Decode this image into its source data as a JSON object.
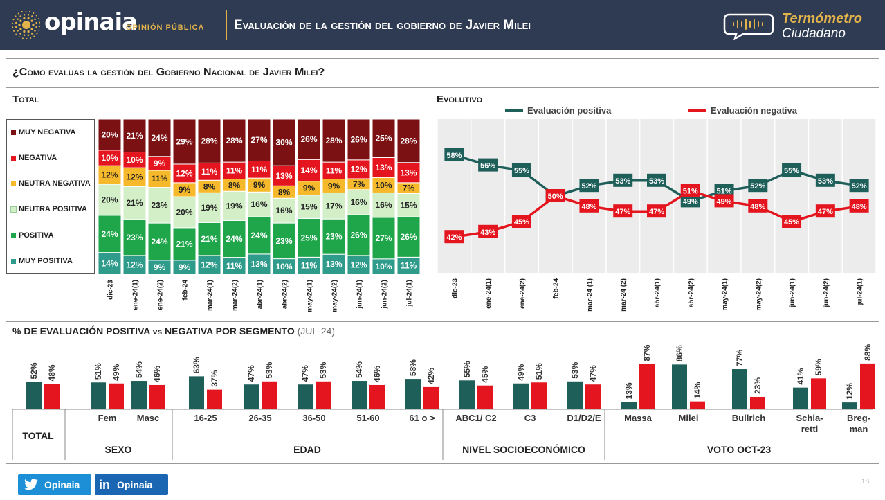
{
  "header": {
    "brand": "opinaia",
    "brand_sub": "OPINIÓN PÚBLICA",
    "title": "Evaluación de la gestión del gobierno de Javier Milei",
    "termo_line1": "Termómetro",
    "termo_line2": "Ciudadano"
  },
  "question": "¿Cómo evalúas la gestión del Gobierno Nacional de Javier Milei?",
  "sections": {
    "total": "Total",
    "evolutivo": "Evolutivo"
  },
  "colors": {
    "muy_negativa": "#7b1113",
    "negativa": "#e4151e",
    "neutra_negativa": "#f6b92b",
    "neutra_positiva": "#d2efc8",
    "positiva": "#1fa54a",
    "muy_positiva": "#2f9b8b",
    "positive_line": "#1e5f5a",
    "negative_line": "#e4151e",
    "header_bg": "#2e3b52",
    "accent": "#e2b34a"
  },
  "chart_data": [
    {
      "type": "bar",
      "stacked": true,
      "title": "Total",
      "categories": [
        "dic-23",
        "ene-24(1)",
        "ene-24(2)",
        "feb-24",
        "mar-24(1)",
        "mar-24(2)",
        "abr-24(1)",
        "abr-24(2)",
        "may-24(1)",
        "may-24(2)",
        "jun-24(1)",
        "jun-24(2)",
        "jul-24(1)"
      ],
      "series": [
        {
          "name": "MUY POSITIVA",
          "values": [
            14,
            12,
            9,
            9,
            12,
            11,
            13,
            10,
            11,
            13,
            12,
            10,
            11
          ]
        },
        {
          "name": "POSITIVA",
          "values": [
            24,
            23,
            24,
            21,
            21,
            24,
            24,
            23,
            25,
            23,
            26,
            27,
            26
          ]
        },
        {
          "name": "NEUTRA POSITIVA",
          "values": [
            20,
            21,
            23,
            20,
            19,
            19,
            16,
            16,
            15,
            17,
            16,
            16,
            15
          ]
        },
        {
          "name": "NEUTRA NEGATIVA",
          "values": [
            12,
            12,
            11,
            9,
            8,
            8,
            9,
            8,
            9,
            9,
            7,
            10,
            7
          ]
        },
        {
          "name": "NEGATIVA",
          "values": [
            10,
            10,
            9,
            12,
            11,
            11,
            11,
            13,
            14,
            11,
            12,
            13,
            13
          ]
        },
        {
          "name": "MUY NEGATIVA",
          "values": [
            20,
            21,
            24,
            29,
            28,
            28,
            27,
            30,
            26,
            28,
            26,
            25,
            28
          ]
        }
      ],
      "ylim": [
        0,
        100
      ]
    },
    {
      "type": "line",
      "title": "Evolutivo",
      "categories": [
        "dic-23",
        "ene-24(1)",
        "ene-24(2)",
        "feb-24",
        "mar-24 (1)",
        "mar-24 (2)",
        "abr-24(1)",
        "abr-24(2)",
        "may-24(1)",
        "may-24(2)",
        "jun-24(1)",
        "jun-24(2)",
        "jul-24(1)"
      ],
      "series": [
        {
          "name": "Evaluación positiva",
          "values": [
            58,
            56,
            55,
            50,
            52,
            53,
            53,
            49,
            51,
            52,
            55,
            53,
            52
          ]
        },
        {
          "name": "Evaluación negativa",
          "values": [
            42,
            43,
            45,
            50,
            48,
            47,
            47,
            51,
            49,
            48,
            45,
            47,
            48
          ]
        }
      ],
      "ylim": [
        35,
        65
      ],
      "grid": true,
      "legend": "top"
    },
    {
      "type": "bar",
      "title": "% DE EVALUACIÓN POSITIVA vs NEGATIVA POR SEGMENTO",
      "title_parts": {
        "a": "% DE EVALUACIÓN POSITIVA",
        "vs": "vs",
        "b": "NEGATIVA POR SEGMENTO",
        "period": "(JUL-24)"
      },
      "categories": [
        "",
        "Fem",
        "Masc",
        "16-25",
        "26-35",
        "36-50",
        "51-60",
        "61 o >",
        "ABC1/ C2",
        "C3",
        "D1/D2/E",
        "Massa",
        "Milei",
        "Bullrich",
        "Schia- retti",
        "Breg- man"
      ],
      "groups": [
        {
          "label": "TOTAL",
          "span": [
            0,
            0
          ]
        },
        {
          "label": "SEXO",
          "span": [
            1,
            2
          ]
        },
        {
          "label": "EDAD",
          "span": [
            3,
            7
          ]
        },
        {
          "label": "NIVEL SOCIOECONÓMICO",
          "span": [
            8,
            10
          ]
        },
        {
          "label": "VOTO OCT-23",
          "span": [
            11,
            15
          ]
        }
      ],
      "series": [
        {
          "name": "Evaluación positiva",
          "values": [
            52,
            51,
            54,
            63,
            47,
            47,
            54,
            58,
            55,
            49,
            53,
            13,
            86,
            77,
            41,
            12
          ]
        },
        {
          "name": "Evaluación negativa",
          "values": [
            48,
            49,
            46,
            37,
            53,
            53,
            46,
            42,
            45,
            51,
            47,
            87,
            14,
            23,
            59,
            88
          ]
        }
      ],
      "ylim": [
        0,
        100
      ]
    }
  ],
  "footer": {
    "twitter": "Opinaia",
    "linkedin": "Opinaia",
    "page": "18"
  }
}
